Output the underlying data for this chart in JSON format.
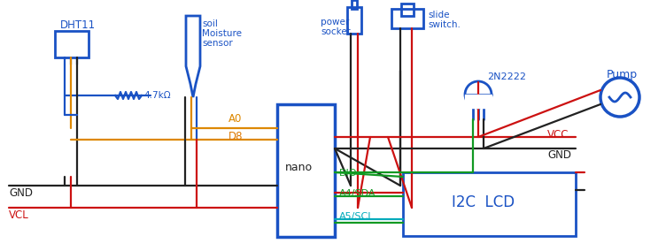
{
  "bg_color": "#ffffff",
  "blue": "#1a52c4",
  "red": "#cc1111",
  "black": "#222222",
  "orange": "#dd8800",
  "yellow": "#ccaa00",
  "green": "#119922",
  "cyan": "#00aabb",
  "dht11_label": "DHT11",
  "soil_label_1": "soil",
  "soil_label_2": "Moisture",
  "soil_label_3": "sensor",
  "power_label_1": "power",
  "power_label_2": "socket",
  "slide_label_1": "slide",
  "slide_label_2": "switch.",
  "transistor_label": "2N2222",
  "pump_label": "Pump",
  "nano_label": "nano",
  "lcd_label": "I2C  LCD",
  "a0_label": "A0",
  "d8_label": "D8",
  "dio_label": "DIO",
  "a4sda_label": "A4/SDA",
  "a5scl_label": "A5/SCL",
  "vcc_label": "VCC",
  "gnd_label": "GND",
  "resistor_label": "4.7kΩ",
  "gnd_bot_label": "GND",
  "vcl_label": "VCL"
}
